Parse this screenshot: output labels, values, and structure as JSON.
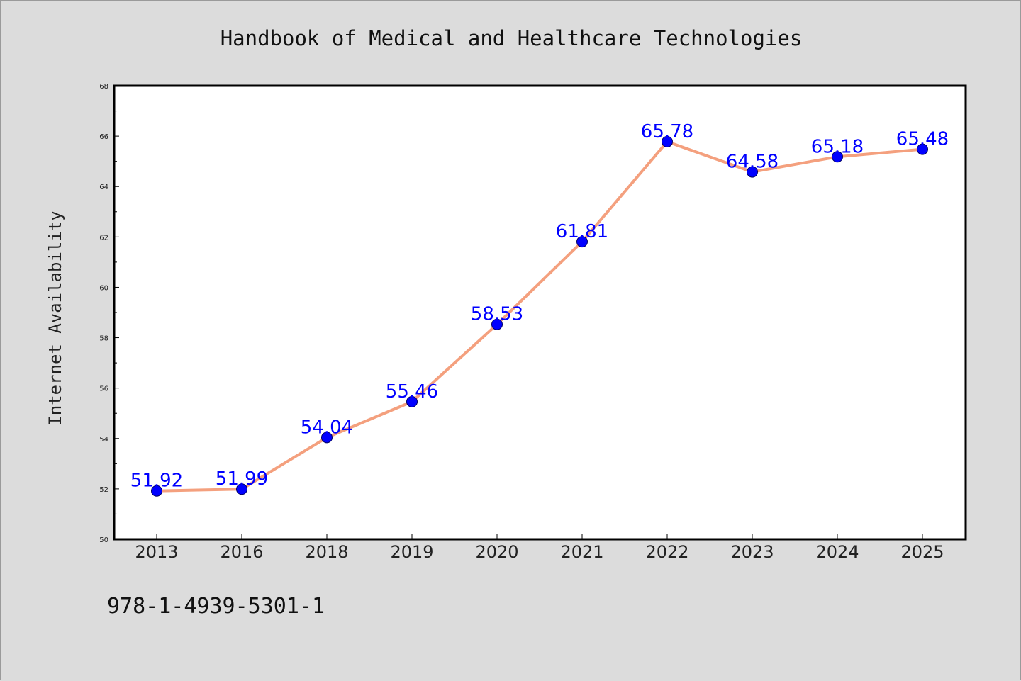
{
  "chart_data": {
    "type": "line",
    "title": "Handbook of Medical and Healthcare Technologies",
    "xlabel": "",
    "ylabel": "Internet Availability",
    "categories": [
      "2013",
      "2016",
      "2018",
      "2019",
      "2020",
      "2021",
      "2022",
      "2023",
      "2024",
      "2025"
    ],
    "series": [
      {
        "values": [
          51.92,
          51.99,
          54.04,
          55.46,
          58.53,
          61.81,
          65.78,
          64.58,
          65.18,
          65.48
        ],
        "data_labels": [
          "51.92",
          "51.99",
          "54.04",
          "55.46",
          "58.53",
          "61.81",
          "65.78",
          "64.58",
          "65.18",
          "65.48"
        ],
        "line_color": "#f4a07e",
        "marker_color": "#0000ff"
      }
    ],
    "ylim": [
      50,
      68
    ],
    "yticks": [
      "50",
      "52",
      "54",
      "56",
      "58",
      "60",
      "62",
      "64",
      "66",
      "68"
    ],
    "grid": false,
    "legend": "none"
  },
  "footer": {
    "isbn": "978-1-4939-5301-1"
  },
  "colors": {
    "background": "#dcdcdc",
    "plot_area": "#ffffff",
    "label_color": "#0000ff"
  }
}
